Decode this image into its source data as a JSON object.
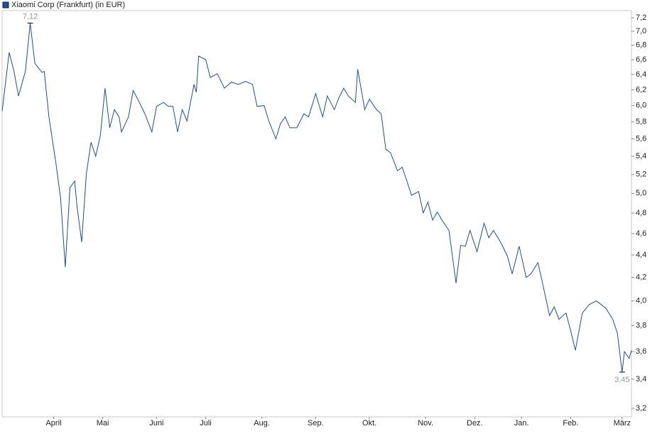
{
  "chart_data": {
    "type": "line",
    "title": "Xiaomi Corp (Frankfurt) (in EUR)",
    "log_scale": true,
    "legend": "top-left",
    "series": [
      {
        "name": "Xiaomi Corp (Frankfurt) (in EUR)",
        "color": "#1f4e96",
        "x": [
          0,
          3,
          5,
          7,
          10,
          12,
          14,
          17,
          18,
          20,
          23,
          25,
          27,
          29,
          31,
          32,
          34,
          36,
          38,
          40,
          42,
          44,
          46,
          48,
          50,
          51,
          54,
          56,
          58,
          61,
          64,
          66,
          69,
          71,
          73,
          75,
          77,
          79,
          82,
          83,
          84,
          87,
          89,
          92,
          95,
          98,
          101,
          104,
          107,
          109,
          112,
          114,
          117,
          119,
          121,
          123,
          126,
          129,
          131,
          134,
          137,
          139,
          142,
          144,
          146,
          148,
          151,
          152,
          155,
          157,
          160,
          162,
          164,
          166,
          169,
          171,
          173,
          175,
          178,
          180,
          182,
          184,
          186,
          188,
          191,
          194,
          196,
          198,
          200,
          203,
          206,
          208,
          210,
          213,
          216,
          218,
          221,
          224,
          226,
          229,
          231,
          234,
          236,
          238,
          241,
          243,
          245,
          248,
          251,
          254,
          256,
          258,
          261,
          263,
          265,
          266,
          268,
          269
        ],
        "values": [
          5.93,
          6.7,
          6.45,
          6.12,
          6.45,
          7.12,
          6.55,
          6.43,
          6.44,
          5.86,
          5.32,
          4.95,
          4.29,
          5.06,
          5.13,
          4.87,
          4.52,
          5.21,
          5.56,
          5.4,
          5.64,
          6.22,
          5.73,
          5.95,
          5.86,
          5.68,
          5.86,
          6.19,
          6.08,
          5.9,
          5.68,
          5.99,
          6.04,
          5.99,
          5.99,
          5.68,
          5.95,
          5.81,
          6.27,
          6.17,
          6.65,
          6.6,
          6.36,
          6.41,
          6.22,
          6.3,
          6.27,
          6.31,
          6.27,
          5.99,
          6.0,
          5.81,
          5.6,
          5.78,
          5.86,
          5.73,
          5.73,
          5.9,
          5.86,
          6.15,
          5.86,
          6.12,
          5.95,
          6.1,
          6.22,
          6.12,
          6.04,
          6.47,
          5.95,
          6.08,
          5.95,
          5.9,
          5.48,
          5.44,
          5.24,
          5.28,
          5.13,
          4.98,
          5.02,
          4.8,
          4.91,
          4.73,
          4.81,
          4.73,
          4.63,
          4.15,
          4.49,
          4.48,
          4.63,
          4.43,
          4.7,
          4.56,
          4.63,
          4.52,
          4.39,
          4.23,
          4.48,
          4.2,
          4.23,
          4.33,
          4.15,
          3.88,
          3.95,
          3.85,
          3.9,
          3.76,
          3.61,
          3.9,
          3.97,
          4.0,
          3.97,
          3.94,
          3.85,
          3.74,
          3.45,
          3.6,
          3.55,
          3.61
        ]
      }
    ],
    "xlim": [
      0,
      269
    ],
    "xticks": [
      {
        "value": 22,
        "label": "April"
      },
      {
        "value": 43,
        "label": "Mai"
      },
      {
        "value": 66,
        "label": "Juni"
      },
      {
        "value": 87,
        "label": "Juli"
      },
      {
        "value": 111,
        "label": "Aug."
      },
      {
        "value": 134,
        "label": "Sep."
      },
      {
        "value": 157,
        "label": "Okt."
      },
      {
        "value": 181,
        "label": "Nov."
      },
      {
        "value": 202,
        "label": "Dez."
      },
      {
        "value": 222,
        "label": "Jan."
      },
      {
        "value": 243,
        "label": "Feb."
      },
      {
        "value": 265,
        "label": "März"
      }
    ],
    "ylim": [
      3.144,
      7.307
    ],
    "yticks": [
      {
        "value": 3.2,
        "label": "3,2"
      },
      {
        "value": 3.4,
        "label": "3,4"
      },
      {
        "value": 3.6,
        "label": "3,6"
      },
      {
        "value": 3.8,
        "label": "3,8"
      },
      {
        "value": 4.0,
        "label": "4,0"
      },
      {
        "value": 4.2,
        "label": "4,2"
      },
      {
        "value": 4.4,
        "label": "4,4"
      },
      {
        "value": 4.6,
        "label": "4,6"
      },
      {
        "value": 4.8,
        "label": "4,8"
      },
      {
        "value": 5.0,
        "label": "5,0"
      },
      {
        "value": 5.2,
        "label": "5,2"
      },
      {
        "value": 5.4,
        "label": "5,4"
      },
      {
        "value": 5.6,
        "label": "5,6"
      },
      {
        "value": 5.8,
        "label": "5,8"
      },
      {
        "value": 6.0,
        "label": "6,0"
      },
      {
        "value": 6.2,
        "label": "6,2"
      },
      {
        "value": 6.4,
        "label": "6,4"
      },
      {
        "value": 6.6,
        "label": "6,6"
      },
      {
        "value": 6.8,
        "label": "6,8"
      },
      {
        "value": 7.0,
        "label": "7,0"
      },
      {
        "value": 7.2,
        "label": "7,2"
      }
    ],
    "annotations": [
      {
        "text": "7,12",
        "x": 12,
        "y": 7.12
      },
      {
        "text": "3,45",
        "x": 265,
        "y": 3.45
      }
    ]
  }
}
